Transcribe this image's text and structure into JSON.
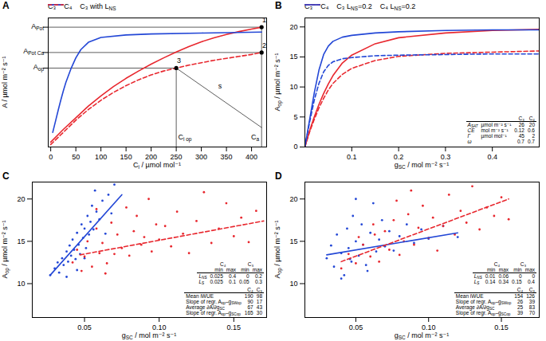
{
  "chart_data": [
    {
      "type": "line",
      "title": "A",
      "x_label": [
        "C",
        "i",
        " / µmol mol⁻¹"
      ],
      "y_label": "A / µmol m⁻² s⁻¹",
      "xlim": [
        -5,
        430
      ],
      "xticks": [
        0,
        50,
        100,
        150,
        200,
        250,
        300,
        350,
        400
      ],
      "ylim": [
        -4,
        22.5
      ],
      "yticks": [
        {
          "value": 20.6,
          "label": [
            "A",
            "Pot"
          ]
        },
        {
          "value": 15.4,
          "label": [
            "A",
            "Pot Ca"
          ]
        },
        {
          "value": 12.2,
          "label": [
            "A",
            "op"
          ]
        }
      ],
      "legend": "top",
      "series": [
        {
          "name": "C₃",
          "color": "#e8272e",
          "line_style": "solid",
          "x": [
            0,
            25,
            50,
            75,
            100,
            125,
            150,
            175,
            200,
            225,
            250,
            275,
            300,
            325,
            350,
            375,
            400,
            420
          ],
          "values": [
            -3,
            -0.4,
            2,
            4.4,
            6.5,
            8.4,
            10.1,
            11.6,
            13,
            14.3,
            15.5,
            16.6,
            17.6,
            18.4,
            19.1,
            19.7,
            20.2,
            20.6
          ]
        },
        {
          "name": "C₄",
          "color": "#2347d6",
          "line_style": "solid",
          "x": [
            4,
            10,
            15,
            20,
            25,
            30,
            40,
            50,
            60,
            75,
            100,
            150,
            200,
            300,
            420
          ],
          "values": [
            -1,
            1.5,
            3.6,
            5.6,
            7.5,
            9.2,
            12,
            14.3,
            16,
            17.5,
            18.5,
            19,
            19.2,
            19.4,
            19.6
          ]
        },
        {
          "name": [
            "C₃ with L",
            "NS"
          ],
          "color": "#e8272e",
          "line_style": "dashed",
          "x": [
            0,
            25,
            50,
            75,
            100,
            125,
            150,
            175,
            200,
            225,
            250,
            275,
            300,
            325,
            350,
            375,
            400,
            420
          ],
          "values": [
            -3.5,
            -1,
            1.5,
            3.7,
            5.6,
            7.2,
            8.6,
            9.8,
            10.8,
            11.6,
            12.2,
            12.8,
            13.3,
            13.8,
            14.2,
            14.6,
            15,
            15.4
          ]
        }
      ],
      "reference_lines": [
        {
          "x": [
            -5,
            420
          ],
          "values": [
            20.6,
            20.6
          ]
        },
        {
          "x": [
            -5,
            420
          ],
          "values": [
            15.4,
            15.4
          ]
        },
        {
          "x": [
            -5,
            250
          ],
          "values": [
            12.2,
            12.2
          ]
        },
        {
          "x": [
            420,
            420
          ],
          "values": [
            -4,
            20.6
          ]
        },
        {
          "x": [
            250,
            250
          ],
          "values": [
            -4,
            12.2
          ]
        },
        {
          "x": [
            250,
            420
          ],
          "values": [
            12.2,
            0
          ]
        }
      ],
      "points": {
        "x": [
          420,
          420,
          250
        ],
        "values": [
          20.6,
          15.4,
          12.2
        ]
      },
      "annotations": [
        {
          "text": "1",
          "x": 426,
          "y": 21.2
        },
        {
          "text": "2",
          "x": 426,
          "y": 16
        },
        {
          "text": "3",
          "x": 256,
          "y": 12.8
        },
        {
          "text": "s",
          "x": 338,
          "y": 7.6
        },
        {
          "text": [
            "C",
            "i op"
          ],
          "x": 268,
          "y": -2.8
        },
        {
          "text": [
            "C",
            "a"
          ],
          "x": 408,
          "y": -2.8
        }
      ]
    },
    {
      "type": "line",
      "title": "B",
      "x_label": [
        "g",
        "SC",
        " / mol m⁻² s⁻¹"
      ],
      "y_label": [
        "A",
        "op",
        " / µmol m⁻² s⁻¹"
      ],
      "xlim": [
        0,
        0.5
      ],
      "xticks": [
        0.1,
        0.2,
        0.3,
        0.4
      ],
      "ylim": [
        0,
        21.5
      ],
      "yticks": [
        0,
        5,
        10,
        15,
        20
      ],
      "legend": "top",
      "series": [
        {
          "name": "C₃",
          "color": "#e8272e",
          "line_style": "solid",
          "x": [
            0,
            0.01,
            0.02,
            0.03,
            0.04,
            0.05,
            0.06,
            0.08,
            0.1,
            0.15,
            0.2,
            0.3,
            0.4,
            0.5
          ],
          "values": [
            0,
            2.7,
            5,
            7.1,
            8.9,
            10.5,
            11.9,
            14,
            15.3,
            17.2,
            18.2,
            19,
            19.4,
            19.6
          ]
        },
        {
          "name": "C₄",
          "color": "#2347d6",
          "line_style": "solid",
          "x": [
            0,
            0.01,
            0.02,
            0.03,
            0.04,
            0.05,
            0.06,
            0.08,
            0.1,
            0.15,
            0.2,
            0.3,
            0.4,
            0.5
          ],
          "values": [
            0,
            4.5,
            9,
            12.8,
            15.4,
            16.8,
            17.6,
            18.3,
            18.6,
            19,
            19.2,
            19.4,
            19.5,
            19.5
          ]
        },
        {
          "name": [
            "C₃ L",
            "NS",
            "=0.2"
          ],
          "color": "#e8272e",
          "line_style": "dashed",
          "x": [
            0,
            0.01,
            0.02,
            0.03,
            0.04,
            0.05,
            0.06,
            0.08,
            0.1,
            0.15,
            0.2,
            0.3,
            0.4,
            0.5
          ],
          "values": [
            0,
            2.5,
            4.6,
            6.5,
            8.1,
            9.5,
            10.6,
            12.1,
            13.1,
            14.4,
            15.1,
            15.6,
            15.8,
            16
          ]
        },
        {
          "name": [
            "C₄ L",
            "NS",
            "=0.2"
          ],
          "color": "#2347d6",
          "line_style": "dashed",
          "x": [
            0,
            0.01,
            0.02,
            0.03,
            0.04,
            0.05,
            0.06,
            0.08,
            0.1,
            0.15,
            0.2,
            0.3,
            0.4,
            0.5
          ],
          "values": [
            0,
            4.1,
            7.8,
            10.6,
            12.5,
            13.6,
            14.2,
            14.7,
            14.9,
            15.2,
            15.3,
            15.4,
            15.5,
            15.5
          ]
        }
      ],
      "table": {
        "columns": [
          "C₃",
          "C₄"
        ],
        "rows": [
          {
            "label": [
              "A",
              "SAT"
            ],
            "unit": "µmol m⁻² s⁻¹",
            "values": [
              26,
              20
            ]
          },
          {
            "label": "CE",
            "unit": "mol m⁻² s⁻¹",
            "values": [
              0.12,
              0.6
            ]
          },
          {
            "label": "Γ",
            "unit": "µmol mol⁻¹",
            "values": [
              45,
              2
            ]
          },
          {
            "label": "ω",
            "values": [
              0.7,
              0.7
            ]
          }
        ]
      }
    },
    {
      "type": "scatter",
      "title": "C",
      "x_label": [
        "g",
        "SC",
        " / mol m⁻² s⁻¹"
      ],
      "y_label": [
        "A",
        "op",
        " / µmol m⁻² s⁻¹"
      ],
      "xlim": [
        0.015,
        0.172
      ],
      "xticks": [
        0.05,
        {
          "value": 0.1,
          "label": "0.10"
        },
        0.15
      ],
      "ylim": [
        6,
        22
      ],
      "yticks": [
        10,
        15,
        20
      ],
      "series": [
        {
          "color": "#2347d6",
          "marker": "dot",
          "x": [
            0.027,
            0.03,
            0.032,
            0.033,
            0.035,
            0.036,
            0.038,
            0.039,
            0.04,
            0.041,
            0.042,
            0.043,
            0.044,
            0.045,
            0.046,
            0.047,
            0.048,
            0.049,
            0.05,
            0.051,
            0.052,
            0.053,
            0.054,
            0.055,
            0.056,
            0.058,
            0.06,
            0.062,
            0.064,
            0.066,
            0.068,
            0.07,
            0.038,
            0.045,
            0.05,
            0.057
          ],
          "values": [
            11.0,
            11.8,
            12.5,
            11.3,
            13.0,
            12.2,
            13.8,
            12.6,
            14.5,
            13.3,
            15.2,
            14.0,
            12.9,
            16.0,
            14.6,
            13.5,
            17.0,
            15.4,
            16.5,
            14.2,
            18.0,
            15.8,
            17.3,
            19.2,
            16.4,
            18.5,
            17.6,
            19.8,
            15.9,
            20.5,
            18.3,
            21.7,
            10.8,
            11.6,
            13.0,
            21.0
          ],
          "fit": {
            "x": [
              0.027,
              0.075
            ],
            "values": [
              11.0,
              20.5
            ],
            "line_style": "solid"
          }
        },
        {
          "color": "#e8272e",
          "marker": "dot",
          "x": [
            0.042,
            0.045,
            0.048,
            0.05,
            0.052,
            0.055,
            0.058,
            0.06,
            0.062,
            0.065,
            0.068,
            0.07,
            0.072,
            0.075,
            0.078,
            0.08,
            0.083,
            0.085,
            0.088,
            0.09,
            0.093,
            0.095,
            0.098,
            0.1,
            0.104,
            0.108,
            0.112,
            0.116,
            0.12,
            0.125,
            0.13,
            0.135,
            0.14,
            0.145,
            0.15,
            0.155,
            0.16,
            0.165,
            0.058,
            0.064
          ],
          "values": [
            12.5,
            14.0,
            11.5,
            13.2,
            15.0,
            12.0,
            16.5,
            13.6,
            14.8,
            12.4,
            17.2,
            13.5,
            15.8,
            14.2,
            19.0,
            13.3,
            16.2,
            18.0,
            14.6,
            15.5,
            20.0,
            13.8,
            17.0,
            15.2,
            16.8,
            14.4,
            18.5,
            15.9,
            13.6,
            17.4,
            20.8,
            14.8,
            16.5,
            19.5,
            15.6,
            17.8,
            14.9,
            18.6,
            18.8,
            11.2
          ],
          "fit": {
            "x": [
              0.047,
              0.17
            ],
            "values": [
              13.4,
              17.4
            ],
            "line_style": "dashed"
          }
        }
      ],
      "param_table": {
        "groups": [
          "C₄",
          "C₃"
        ],
        "subheaders": [
          "min",
          "max",
          "min",
          "max"
        ],
        "rows": [
          {
            "label": [
              "L",
              "NS"
            ],
            "values": [
              0.025,
              0.4,
              0,
              0.2
            ]
          },
          {
            "label": [
              "L",
              "S"
            ],
            "values": [
              0.025,
              0.1,
              0.05,
              0.3
            ]
          }
        ]
      },
      "summary_table": {
        "columns": [
          "C₄",
          "C₃"
        ],
        "rows": [
          {
            "label": "Mean iWUE",
            "values": [
              190,
              98
            ]
          },
          {
            "label": [
              "Slope of regr. A",
              "op",
              "–g",
              "SWop"
            ],
            "values": [
              90,
              17
            ]
          },
          {
            "label": [
              "Average ∂A/∂g",
              "SC"
            ],
            "values": [
              67,
              43
            ]
          },
          {
            "label": [
              "Slope of regr. A",
              "op",
              "–g",
              "SCop"
            ],
            "values": [
              165,
              30
            ]
          }
        ]
      }
    },
    {
      "type": "scatter",
      "title": "D",
      "x_label": [
        "g",
        "SC",
        " / mol m⁻² s⁻¹"
      ],
      "y_label": [
        "A",
        "op",
        " / µmol m⁻² s⁻¹"
      ],
      "xlim": [
        0.015,
        0.176
      ],
      "xticks": [
        0.05,
        {
          "value": 0.1,
          "label": "0.10"
        },
        0.15
      ],
      "ylim": [
        6,
        22
      ],
      "yticks": [
        10,
        15,
        20
      ],
      "series": [
        {
          "color": "#2347d6",
          "marker": "dot",
          "x": [
            0.03,
            0.033,
            0.035,
            0.037,
            0.04,
            0.042,
            0.044,
            0.045,
            0.047,
            0.048,
            0.05,
            0.052,
            0.054,
            0.055,
            0.057,
            0.06,
            0.062,
            0.064,
            0.066,
            0.068,
            0.07,
            0.073,
            0.076,
            0.08,
            0.085,
            0.09,
            0.095,
            0.1,
            0.11,
            0.12,
            0.04,
            0.05,
            0.058,
            0.046
          ],
          "values": [
            13.0,
            14.5,
            12.0,
            15.8,
            13.6,
            11.0,
            16.5,
            14.2,
            12.6,
            18.0,
            15.0,
            13.3,
            17.0,
            14.6,
            12.2,
            16.0,
            19.5,
            13.8,
            15.2,
            17.5,
            14.4,
            16.2,
            13.9,
            15.6,
            17.0,
            14.8,
            16.4,
            15.3,
            16.8,
            15.5,
            10.6,
            20.0,
            11.5,
            12.9
          ],
          "fit": {
            "x": [
              0.03,
              0.12
            ],
            "values": [
              13.4,
              16.0
            ],
            "line_style": "solid"
          }
        },
        {
          "color": "#e8272e",
          "marker": "dot",
          "x": [
            0.04,
            0.045,
            0.05,
            0.055,
            0.06,
            0.063,
            0.066,
            0.07,
            0.073,
            0.076,
            0.08,
            0.083,
            0.086,
            0.09,
            0.093,
            0.096,
            0.1,
            0.103,
            0.106,
            0.11,
            0.114,
            0.118,
            0.122,
            0.126,
            0.13,
            0.135,
            0.14,
            0.145,
            0.15,
            0.155,
            0.052,
            0.062,
            0.078,
            0.088
          ],
          "values": [
            11.8,
            13.5,
            12.4,
            14.6,
            13.2,
            15.8,
            12.6,
            16.2,
            14.0,
            17.5,
            13.4,
            15.0,
            18.2,
            14.6,
            16.6,
            19.2,
            15.4,
            17.8,
            13.9,
            16.8,
            20.5,
            15.8,
            18.6,
            17.2,
            21.5,
            16.4,
            19.0,
            18.0,
            20.2,
            17.6,
            15.5,
            17.0,
            19.8,
            21.0
          ],
          "fit": {
            "x": [
              0.04,
              0.155
            ],
            "values": [
              12.6,
              20.0
            ],
            "line_style": "dashed"
          }
        }
      ],
      "param_table": {
        "groups": [
          "C₄",
          "C₃"
        ],
        "subheaders": [
          "min",
          "max",
          "min",
          "max"
        ],
        "rows": [
          {
            "label": [
              "L",
              "NS"
            ],
            "values": [
              0.01,
              0.06,
              0,
              0
            ]
          },
          {
            "label": [
              "L",
              "S"
            ],
            "values": [
              0.14,
              0.34,
              0.15,
              0.4
            ]
          }
        ]
      },
      "summary_table": {
        "columns": [
          "C₄",
          "C₃"
        ],
        "rows": [
          {
            "label": "Mean iWUE",
            "values": [
              154,
              126
            ]
          },
          {
            "label": [
              "Slope of regr. A",
              "op",
              "–g",
              "SWop"
            ],
            "values": [
              26,
              39
            ]
          },
          {
            "label": [
              "Average ∂A/∂g",
              "SC"
            ],
            "values": [
              25,
              83
            ]
          },
          {
            "label": [
              "Slope of regr. A",
              "op",
              "–g",
              "SCop"
            ],
            "values": [
              39,
              70
            ]
          }
        ]
      }
    }
  ]
}
